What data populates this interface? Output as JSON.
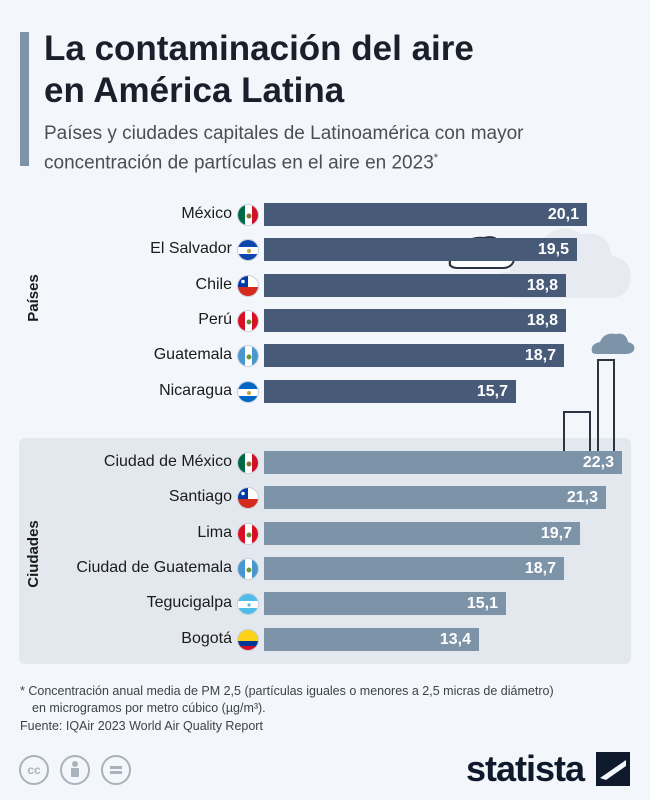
{
  "header": {
    "title_line1": "La contaminación del aire",
    "title_line2": "en América Latina",
    "subtitle_line1": "Países y ciudades capitales de Latinoamérica con mayor",
    "subtitle_line2": "concentración de partículas en el aire en 2023",
    "subtitle_mark": "*"
  },
  "chart_data": {
    "type": "bar",
    "orientation": "horizontal",
    "unit": "µg/m³",
    "groups": [
      {
        "name": "Países",
        "color": "#475b78",
        "items": [
          {
            "label": "México",
            "value": 20.1,
            "display": "20,1",
            "flag": "mexico"
          },
          {
            "label": "El Salvador",
            "value": 19.5,
            "display": "19,5",
            "flag": "el-salvador"
          },
          {
            "label": "Chile",
            "value": 18.8,
            "display": "18,8",
            "flag": "chile"
          },
          {
            "label": "Perú",
            "value": 18.8,
            "display": "18,8",
            "flag": "peru"
          },
          {
            "label": "Guatemala",
            "value": 18.7,
            "display": "18,7",
            "flag": "guatemala"
          },
          {
            "label": "Nicaragua",
            "value": 15.7,
            "display": "15,7",
            "flag": "nicaragua"
          }
        ]
      },
      {
        "name": "Ciudades",
        "color": "#7d93a8",
        "items": [
          {
            "label": "Ciudad de México",
            "value": 22.3,
            "display": "22,3",
            "flag": "mexico"
          },
          {
            "label": "Santiago",
            "value": 21.3,
            "display": "21,3",
            "flag": "chile"
          },
          {
            "label": "Lima",
            "value": 19.7,
            "display": "19,7",
            "flag": "peru"
          },
          {
            "label": "Ciudad de Guatemala",
            "value": 18.7,
            "display": "18,7",
            "flag": "guatemala"
          },
          {
            "label": "Tegucigalpa",
            "value": 15.1,
            "display": "15,1",
            "flag": "honduras"
          },
          {
            "label": "Bogotá",
            "value": 13.4,
            "display": "13,4",
            "flag": "colombia"
          }
        ]
      }
    ]
  },
  "footer": {
    "note_line1": "* Concentración anual media de PM 2,5 (partículas iguales o menores a 2,5 micras de diámetro)",
    "note_line2": "en microgramos por metro cúbico (µg/m³).",
    "source": "Fuente: IQAir 2023 World Air Quality Report",
    "logo": "statista",
    "license_icons": [
      "cc-icon",
      "attribution-icon",
      "no-derivatives-icon"
    ]
  }
}
